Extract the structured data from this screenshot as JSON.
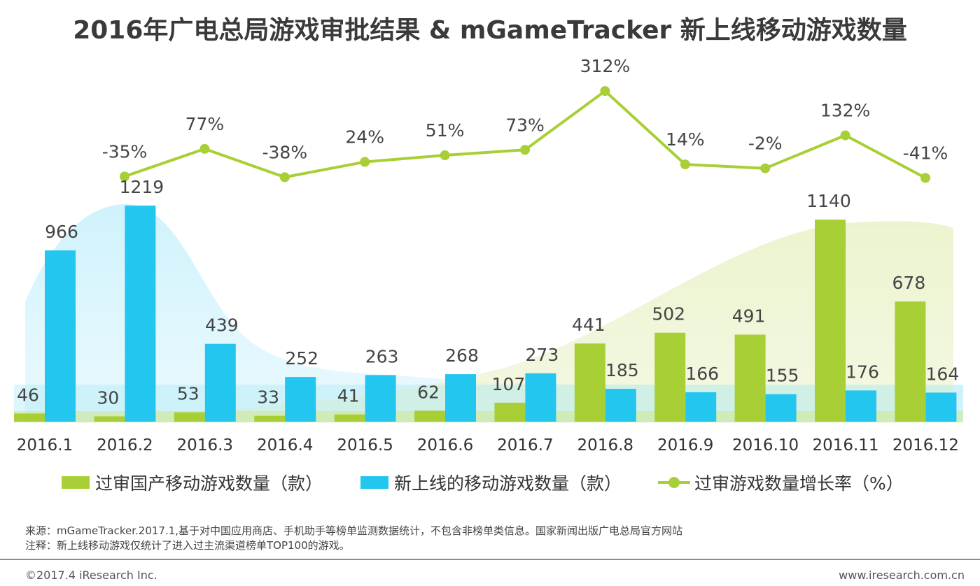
{
  "title": "2016年广电总局游戏审批结果 & mGameTracker 新上线移动游戏数量",
  "colors": {
    "green": "#a8cf35",
    "blue": "#22c6ee",
    "line": "#a8cf35",
    "tick": "#333333",
    "label": "#444444"
  },
  "chart_data": {
    "type": "bar",
    "categories": [
      "2016.1",
      "2016.2",
      "2016.3",
      "2016.4",
      "2016.5",
      "2016.6",
      "2016.7",
      "2016.8",
      "2016.9",
      "2016.10",
      "2016.11",
      "2016.12"
    ],
    "ylim": [
      0,
      1300
    ],
    "series": [
      {
        "name": "过审国产移动游戏数量（款）",
        "type": "bar",
        "color": "#a8cf35",
        "values": [
          46,
          30,
          53,
          33,
          41,
          62,
          107,
          441,
          502,
          491,
          1140,
          678
        ]
      },
      {
        "name": "新上线的移动游戏数量（款）",
        "type": "bar",
        "color": "#22c6ee",
        "values": [
          966,
          1219,
          439,
          252,
          263,
          268,
          273,
          185,
          166,
          155,
          176,
          164
        ]
      },
      {
        "name": "过审游戏数量增长率（%）",
        "type": "line",
        "color": "#a8cf35",
        "values": [
          null,
          -35,
          77,
          -38,
          24,
          51,
          73,
          312,
          14,
          -2,
          132,
          -41
        ],
        "labels": [
          "",
          "-35%",
          "77%",
          "-38%",
          "24%",
          "51%",
          "73%",
          "312%",
          "14%",
          "-2%",
          "132%",
          "-41%"
        ]
      }
    ]
  },
  "legend": {
    "green_bar": "过审国产移动游戏数量（款）",
    "blue_bar": "新上线的移动游戏数量（款）",
    "line": "过审游戏数量增长率（%）"
  },
  "notes": {
    "source": "来源：mGameTracker.2017.1,基于对中国应用商店、手机助手等榜单监测数据统计，不包含非榜单类信息。国家新闻出版广电总局官方网站",
    "remark": "注释：新上线移动游戏仅统计了进入过主流渠道榜单TOP100的游戏。"
  },
  "footer": {
    "copyright": "©2017.4 iResearch Inc.",
    "website": "www.iresearch.com.cn"
  }
}
